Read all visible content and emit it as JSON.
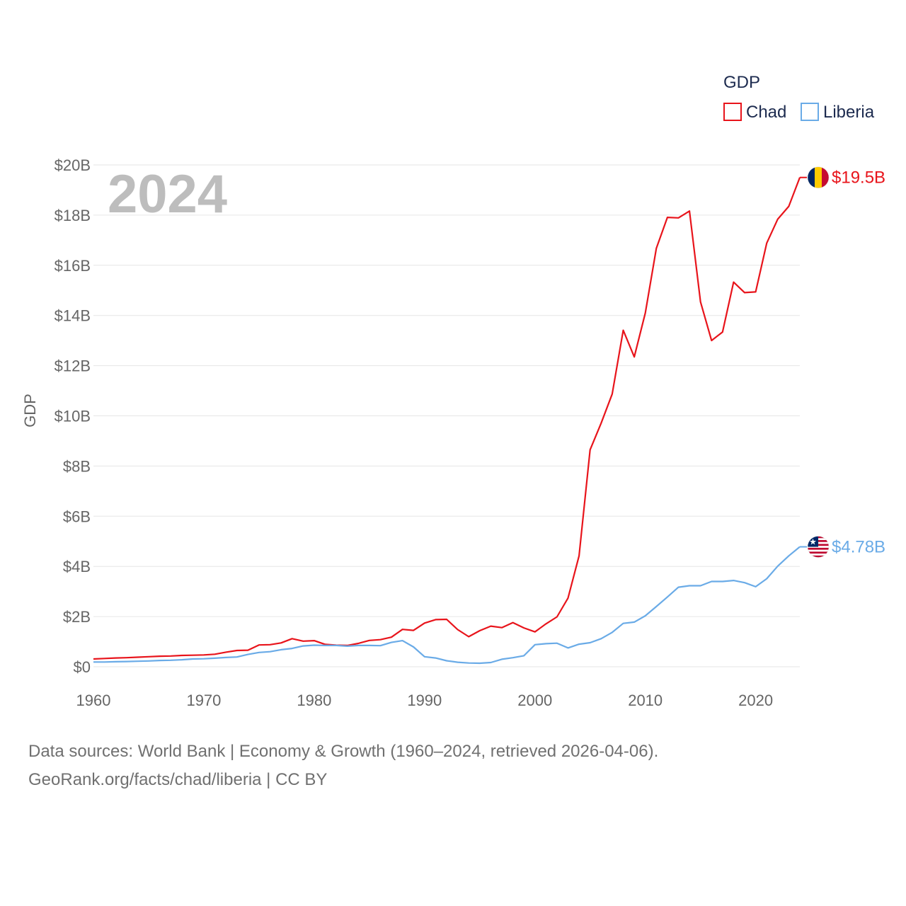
{
  "chart_data": {
    "type": "line",
    "legend_title": "GDP",
    "ylabel": "GDP",
    "year_label": "2024",
    "x": [
      1960,
      1961,
      1962,
      1963,
      1964,
      1965,
      1966,
      1967,
      1968,
      1969,
      1970,
      1971,
      1972,
      1973,
      1974,
      1975,
      1976,
      1977,
      1978,
      1979,
      1980,
      1981,
      1982,
      1983,
      1984,
      1985,
      1986,
      1987,
      1988,
      1989,
      1990,
      1991,
      1992,
      1993,
      1994,
      1995,
      1996,
      1997,
      1998,
      1999,
      2000,
      2001,
      2002,
      2003,
      2004,
      2005,
      2006,
      2007,
      2008,
      2009,
      2010,
      2011,
      2012,
      2013,
      2014,
      2015,
      2016,
      2017,
      2018,
      2019,
      2020,
      2021,
      2022,
      2023,
      2024
    ],
    "series": [
      {
        "name": "Chad",
        "color": "#e8141b",
        "end_label": "$19.5B",
        "flag_icon": "chad-flag-icon",
        "values": [
          0.31,
          0.33,
          0.35,
          0.36,
          0.38,
          0.4,
          0.42,
          0.43,
          0.45,
          0.46,
          0.47,
          0.5,
          0.58,
          0.65,
          0.66,
          0.87,
          0.88,
          0.95,
          1.12,
          1.02,
          1.04,
          0.89,
          0.86,
          0.85,
          0.93,
          1.05,
          1.08,
          1.18,
          1.49,
          1.45,
          1.74,
          1.88,
          1.89,
          1.48,
          1.2,
          1.44,
          1.62,
          1.56,
          1.76,
          1.55,
          1.39,
          1.71,
          1.99,
          2.74,
          4.42,
          8.65,
          9.71,
          10.87,
          13.41,
          12.35,
          14.1,
          16.68,
          17.91,
          17.89,
          18.16,
          14.54,
          13.0,
          13.34,
          15.33,
          14.91,
          14.94,
          16.88,
          17.84,
          18.35,
          19.5
        ]
      },
      {
        "name": "Liberia",
        "color": "#6aabe7",
        "end_label": "$4.78B",
        "flag_icon": "liberia-flag-icon",
        "values": [
          0.19,
          0.19,
          0.2,
          0.21,
          0.22,
          0.23,
          0.25,
          0.26,
          0.28,
          0.31,
          0.32,
          0.34,
          0.37,
          0.39,
          0.49,
          0.57,
          0.6,
          0.68,
          0.73,
          0.83,
          0.86,
          0.85,
          0.85,
          0.82,
          0.85,
          0.85,
          0.84,
          0.97,
          1.04,
          0.79,
          0.4,
          0.35,
          0.24,
          0.18,
          0.15,
          0.14,
          0.17,
          0.3,
          0.36,
          0.44,
          0.88,
          0.92,
          0.94,
          0.75,
          0.9,
          0.96,
          1.12,
          1.37,
          1.73,
          1.78,
          2.03,
          2.4,
          2.78,
          3.17,
          3.23,
          3.23,
          3.4,
          3.4,
          3.44,
          3.35,
          3.19,
          3.51,
          4.01,
          4.42,
          4.78
        ]
      }
    ],
    "ylim": [
      0,
      20
    ],
    "y_ticks": [
      0,
      2,
      4,
      6,
      8,
      10,
      12,
      14,
      16,
      18,
      20
    ],
    "y_tick_labels": [
      "$0",
      "$2B",
      "$4B",
      "$6B",
      "$8B",
      "$10B",
      "$12B",
      "$14B",
      "$16B",
      "$18B",
      "$20B"
    ],
    "xlim": [
      1960,
      2024
    ],
    "x_ticks": [
      1960,
      1970,
      1980,
      1990,
      2000,
      2010,
      2020
    ],
    "x_tick_labels": [
      "1960",
      "1970",
      "1980",
      "1990",
      "2000",
      "2010",
      "2020"
    ],
    "grid": true,
    "legend_position": "top-right"
  },
  "footer": {
    "line1": "Data sources: World Bank | Economy & Growth (1960–2024, retrieved 2026-04-06).",
    "line2": "GeoRank.org/facts/chad/liberia | CC BY"
  }
}
